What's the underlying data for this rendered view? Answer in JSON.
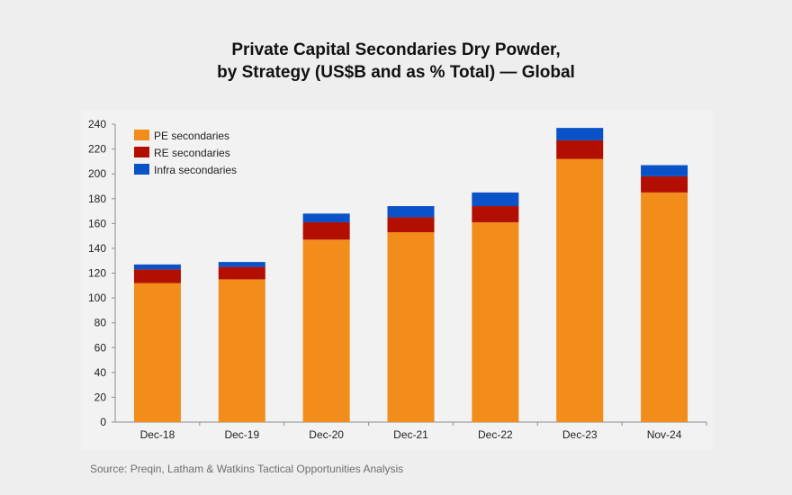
{
  "chart_data": {
    "type": "bar",
    "stacked": true,
    "title_lines": [
      "Private Capital Secondaries Dry Powder,",
      "by Strategy (US$B and as % Total) — Global"
    ],
    "categories": [
      "Dec-18",
      "Dec-19",
      "Dec-20",
      "Dec-21",
      "Dec-22",
      "Dec-23",
      "Nov-24"
    ],
    "series": [
      {
        "name": "PE secondaries",
        "color": "#f28c1a",
        "values": [
          112,
          115,
          147,
          153,
          161,
          212,
          185
        ]
      },
      {
        "name": "RE secondaries",
        "color": "#b20f00",
        "values": [
          11,
          10,
          14,
          12,
          13,
          15,
          13
        ]
      },
      {
        "name": "Infra secondaries",
        "color": "#0a52c8",
        "values": [
          4,
          4,
          7,
          9,
          11,
          10,
          9
        ]
      }
    ],
    "ylim": [
      0,
      240
    ],
    "yticks": [
      "0",
      "20",
      "40",
      "60",
      "80",
      "100",
      "120",
      "140",
      "160",
      "180",
      "200",
      "220",
      "240"
    ],
    "grid": false,
    "legend_position": "top-left"
  },
  "source": "Source: Preqin, Latham & Watkins Tactical Opportunities Analysis"
}
